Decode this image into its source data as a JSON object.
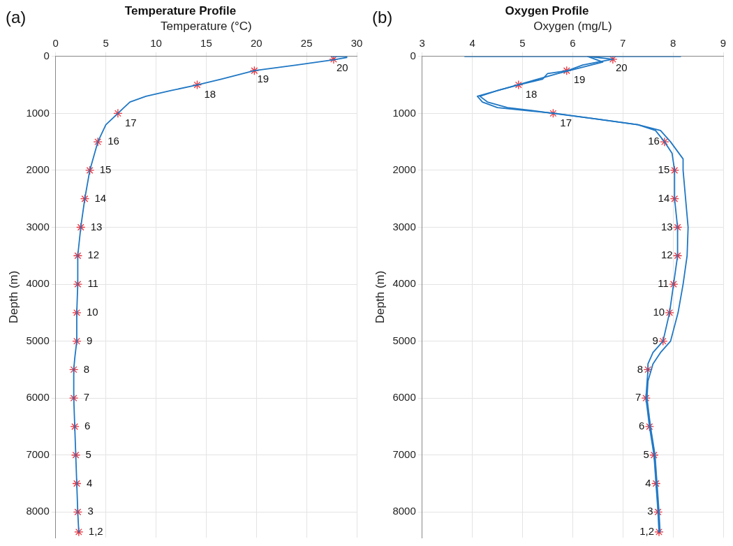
{
  "chart_data": [
    {
      "type": "line",
      "title": "Temperature Profile",
      "xlabel": "Temperature (°C)",
      "ylabel": "Depth (m)",
      "annotations": [
        "(a)",
        {
          "text": "20",
          "x": 27.7,
          "y": 50
        },
        {
          "text": "19",
          "x": 19.8,
          "y": 250
        },
        {
          "text": "18",
          "x": 14.1,
          "y": 500
        },
        {
          "text": "17",
          "x": 6.2,
          "y": 1000
        },
        {
          "text": "16",
          "x": 4.2,
          "y": 1500
        },
        {
          "text": "15",
          "x": 3.4,
          "y": 2000
        },
        {
          "text": "14",
          "x": 2.9,
          "y": 2500
        },
        {
          "text": "13",
          "x": 2.5,
          "y": 3000
        },
        {
          "text": "12",
          "x": 2.2,
          "y": 3500
        },
        {
          "text": "11",
          "x": 2.2,
          "y": 4000
        },
        {
          "text": "10",
          "x": 2.1,
          "y": 4500
        },
        {
          "text": "9",
          "x": 2.1,
          "y": 5000
        },
        {
          "text": "8",
          "x": 1.8,
          "y": 5500
        },
        {
          "text": "7",
          "x": 1.8,
          "y": 6000
        },
        {
          "text": "6",
          "x": 1.9,
          "y": 6500
        },
        {
          "text": "5",
          "x": 2.0,
          "y": 7000
        },
        {
          "text": "4",
          "x": 2.1,
          "y": 7500
        },
        {
          "text": "3",
          "x": 2.2,
          "y": 8000
        },
        {
          "text": "1,2",
          "x": 2.3,
          "y": 8350
        }
      ],
      "xlim": [
        0,
        30
      ],
      "xticks": [
        0,
        5,
        10,
        15,
        20,
        25,
        30
      ],
      "ylim": [
        8450,
        0
      ],
      "yticks": [
        0,
        1000,
        2000,
        3000,
        4000,
        5000,
        6000,
        7000,
        8000
      ],
      "grid": true,
      "legend": false,
      "series": [
        {
          "type": "line",
          "color": "#1f77c4",
          "line_style": "solid",
          "marker": "none",
          "x": [
            27.5,
            29,
            29,
            27.7,
            24,
            19.8,
            16.5,
            14.1,
            11.5,
            9,
            7.4,
            6.8,
            6.2,
            5,
            4.2,
            3.4,
            2.9,
            2.5,
            2.2,
            2.2,
            2.1,
            2.1,
            1.9,
            1.8,
            1.8,
            1.9,
            2.0,
            2.1,
            2.2,
            2.3
          ],
          "values": [
            0,
            0,
            20,
            60,
            150,
            250,
            400,
            500,
            600,
            700,
            800,
            900,
            1000,
            1200,
            1500,
            2000,
            2500,
            3000,
            3500,
            4000,
            4500,
            5000,
            5300,
            5500,
            6000,
            6500,
            7000,
            7500,
            8000,
            8350
          ]
        },
        {
          "type": "scatter",
          "color": "#e8303a",
          "marker": "cross",
          "x": [
            27.7,
            19.8,
            14.1,
            6.2,
            4.2,
            3.4,
            2.9,
            2.5,
            2.2,
            2.2,
            2.1,
            2.1,
            1.8,
            1.8,
            1.9,
            2.0,
            2.1,
            2.2,
            2.3
          ],
          "values": [
            50,
            250,
            500,
            1000,
            1500,
            2000,
            2500,
            3000,
            3500,
            4000,
            4500,
            5000,
            5500,
            6000,
            6500,
            7000,
            7500,
            8000,
            8350
          ]
        }
      ]
    },
    {
      "type": "line",
      "title": "Oxygen Profile",
      "xlabel": "Oxygen (mg/L)",
      "ylabel": "Depth (m)",
      "annotations": [
        "(b)",
        {
          "text": "20",
          "x": 6.8,
          "y": 50
        },
        {
          "text": "19",
          "x": 5.88,
          "y": 250
        },
        {
          "text": "18",
          "x": 4.92,
          "y": 500
        },
        {
          "text": "17",
          "x": 5.61,
          "y": 1000
        },
        {
          "text": "16",
          "x": 7.83,
          "y": 1500
        },
        {
          "text": "15",
          "x": 8.03,
          "y": 2000
        },
        {
          "text": "14",
          "x": 8.03,
          "y": 2500
        },
        {
          "text": "13",
          "x": 8.09,
          "y": 3000
        },
        {
          "text": "12",
          "x": 8.09,
          "y": 3500
        },
        {
          "text": "11",
          "x": 8.01,
          "y": 4000
        },
        {
          "text": "10",
          "x": 7.93,
          "y": 4500
        },
        {
          "text": "9",
          "x": 7.8,
          "y": 5000
        },
        {
          "text": "8",
          "x": 7.5,
          "y": 5500
        },
        {
          "text": "7",
          "x": 7.46,
          "y": 6000
        },
        {
          "text": "6",
          "x": 7.53,
          "y": 6500
        },
        {
          "text": "5",
          "x": 7.62,
          "y": 7000
        },
        {
          "text": "4",
          "x": 7.66,
          "y": 7500
        },
        {
          "text": "3",
          "x": 7.7,
          "y": 8000
        },
        {
          "text": "1,2",
          "x": 7.72,
          "y": 8350
        }
      ],
      "xlim": [
        3,
        9
      ],
      "xticks": [
        3,
        4,
        5,
        6,
        7,
        8,
        9
      ],
      "ylim": [
        8450,
        0
      ],
      "yticks": [
        0,
        1000,
        2000,
        3000,
        4000,
        5000,
        6000,
        7000,
        8000
      ],
      "grid": true,
      "legend": false,
      "series": [
        {
          "type": "line",
          "color": "#1f77c4",
          "line_style": "solid",
          "marker": "none",
          "x": [
            3.85,
            8.15,
            6.3,
            6.8,
            6.5,
            6.2,
            5.9,
            5.5,
            5.4,
            4.92,
            4.5,
            4.15,
            4.3,
            4.7,
            5.2,
            5.61,
            6.5,
            7.3,
            7.65,
            7.83,
            7.98,
            8.03,
            8.03,
            8.09,
            8.09,
            8.01,
            7.93,
            7.8,
            7.6,
            7.5,
            7.5,
            7.46,
            7.53,
            7.62,
            7.66,
            7.7,
            7.72
          ],
          "values": [
            0,
            0,
            0,
            50,
            100,
            150,
            250,
            300,
            400,
            500,
            600,
            700,
            800,
            900,
            950,
            1000,
            1100,
            1200,
            1300,
            1500,
            1700,
            2000,
            2500,
            3000,
            3500,
            4000,
            4500,
            5000,
            5200,
            5400,
            5500,
            6000,
            6500,
            7000,
            7500,
            8000,
            8350
          ]
        },
        {
          "type": "line",
          "color": "#1f77c4",
          "line_style": "solid",
          "marker": "none",
          "x": [
            6.3,
            6.6,
            5.7,
            4.9,
            4.1,
            4.2,
            4.5,
            5.65,
            7.3,
            7.75,
            7.95,
            8.2,
            8.2,
            8.3,
            8.28,
            8.2,
            8.1,
            7.95,
            7.75,
            7.6,
            7.5,
            7.48,
            7.55,
            7.64,
            7.72,
            7.74
          ],
          "values": [
            0,
            100,
            300,
            500,
            700,
            800,
            900,
            1000,
            1200,
            1300,
            1500,
            1800,
            2000,
            3000,
            3500,
            4000,
            4500,
            5000,
            5200,
            5400,
            5700,
            6000,
            6500,
            7000,
            8000,
            8350
          ]
        },
        {
          "type": "scatter",
          "color": "#e8303a",
          "marker": "cross",
          "x": [
            6.8,
            5.88,
            4.92,
            5.61,
            7.83,
            8.03,
            8.03,
            8.09,
            8.09,
            8.01,
            7.93,
            7.8,
            7.5,
            7.46,
            7.53,
            7.62,
            7.66,
            7.7,
            7.72
          ],
          "values": [
            50,
            250,
            500,
            1000,
            1500,
            2000,
            2500,
            3000,
            3500,
            4000,
            4500,
            5000,
            5500,
            6000,
            6500,
            7000,
            7500,
            8000,
            8350
          ]
        }
      ]
    }
  ]
}
